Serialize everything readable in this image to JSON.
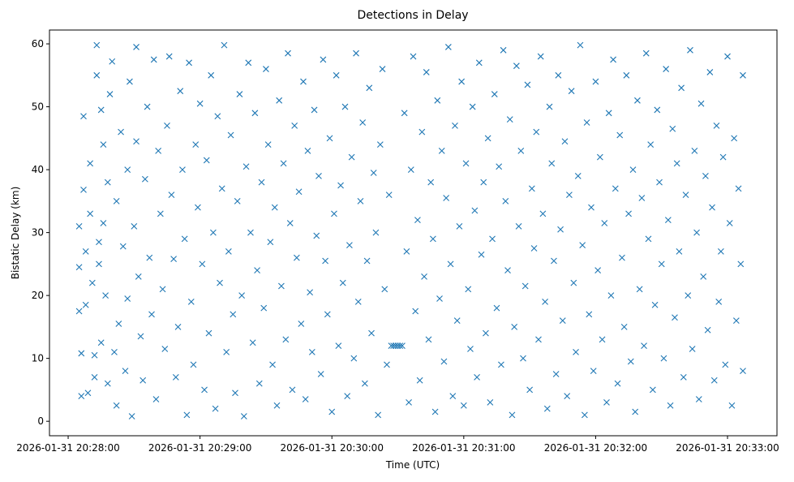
{
  "chart_data": {
    "type": "scatter",
    "title": "Detections in Delay",
    "xlabel": "Time (UTC)",
    "ylabel": "Bistatic Delay (km)",
    "x_unit": "seconds since 2026-01-31 20:28:00",
    "xlim": [
      -8.5,
      322.5
    ],
    "ylim": [
      -2.3,
      62.2
    ],
    "xticks": [
      0,
      60,
      120,
      180,
      240,
      300
    ],
    "xtick_labels": [
      "2026-01-31 20:28:00",
      "2026-01-31 20:29:00",
      "2026-01-31 20:30:00",
      "2026-01-31 20:31:00",
      "2026-01-31 20:32:00",
      "2026-01-31 20:33:00"
    ],
    "yticks": [
      0,
      10,
      20,
      30,
      40,
      50,
      60
    ],
    "ytick_labels": [
      "0",
      "10",
      "20",
      "30",
      "40",
      "50",
      "60"
    ],
    "marker": "x",
    "color": "#1f77b4",
    "grid": false,
    "points": [
      [
        5,
        31
      ],
      [
        5,
        24.5
      ],
      [
        5,
        17.5
      ],
      [
        6,
        10.8
      ],
      [
        6,
        4
      ],
      [
        7,
        48.5
      ],
      [
        7,
        36.8
      ],
      [
        8,
        27
      ],
      [
        8,
        18.5
      ],
      [
        9,
        4.5
      ],
      [
        10,
        41
      ],
      [
        10,
        33
      ],
      [
        11,
        22
      ],
      [
        12,
        10.5
      ],
      [
        12,
        7
      ],
      [
        13,
        59.8
      ],
      [
        13,
        55
      ],
      [
        14,
        25
      ],
      [
        14,
        28.5
      ],
      [
        15,
        49.5
      ],
      [
        15,
        12.5
      ],
      [
        16,
        44
      ],
      [
        16,
        31.5
      ],
      [
        17,
        20
      ],
      [
        18,
        6
      ],
      [
        18,
        38
      ],
      [
        19,
        52
      ],
      [
        20,
        57.2
      ],
      [
        21,
        11
      ],
      [
        22,
        35
      ],
      [
        22,
        2.5
      ],
      [
        23,
        15.5
      ],
      [
        24,
        46
      ],
      [
        25,
        27.8
      ],
      [
        26,
        8
      ],
      [
        27,
        40
      ],
      [
        27,
        19.5
      ],
      [
        28,
        54
      ],
      [
        29,
        0.8
      ],
      [
        30,
        31
      ],
      [
        31,
        59.5
      ],
      [
        31,
        44.5
      ],
      [
        32,
        23
      ],
      [
        33,
        13.5
      ],
      [
        34,
        6.5
      ],
      [
        35,
        38.5
      ],
      [
        36,
        50
      ],
      [
        37,
        26
      ],
      [
        38,
        17
      ],
      [
        39,
        57.5
      ],
      [
        40,
        3.5
      ],
      [
        41,
        43
      ],
      [
        42,
        33
      ],
      [
        43,
        21
      ],
      [
        44,
        11.5
      ],
      [
        45,
        47
      ],
      [
        46,
        58
      ],
      [
        47,
        36
      ],
      [
        48,
        25.8
      ],
      [
        49,
        7
      ],
      [
        50,
        15
      ],
      [
        51,
        52.5
      ],
      [
        52,
        40
      ],
      [
        53,
        29
      ],
      [
        54,
        1
      ],
      [
        55,
        57
      ],
      [
        56,
        19
      ],
      [
        57,
        9
      ],
      [
        58,
        44
      ],
      [
        59,
        34
      ],
      [
        60,
        50.5
      ],
      [
        61,
        25
      ],
      [
        62,
        5
      ],
      [
        63,
        41.5
      ],
      [
        64,
        14
      ],
      [
        65,
        55
      ],
      [
        66,
        30
      ],
      [
        67,
        2
      ],
      [
        68,
        48.5
      ],
      [
        69,
        22
      ],
      [
        70,
        37
      ],
      [
        71,
        59.8
      ],
      [
        72,
        11
      ],
      [
        73,
        27
      ],
      [
        74,
        45.5
      ],
      [
        75,
        17
      ],
      [
        76,
        4.5
      ],
      [
        77,
        35
      ],
      [
        78,
        52
      ],
      [
        79,
        20
      ],
      [
        80,
        0.8
      ],
      [
        81,
        40.5
      ],
      [
        82,
        57
      ],
      [
        83,
        30
      ],
      [
        84,
        12.5
      ],
      [
        85,
        49
      ],
      [
        86,
        24
      ],
      [
        87,
        6
      ],
      [
        88,
        38
      ],
      [
        89,
        18
      ],
      [
        90,
        56
      ],
      [
        91,
        44
      ],
      [
        92,
        28.5
      ],
      [
        93,
        9
      ],
      [
        94,
        34
      ],
      [
        95,
        2.5
      ],
      [
        96,
        51
      ],
      [
        97,
        21.5
      ],
      [
        98,
        41
      ],
      [
        99,
        13
      ],
      [
        100,
        58.5
      ],
      [
        101,
        31.5
      ],
      [
        102,
        5
      ],
      [
        103,
        47
      ],
      [
        104,
        26
      ],
      [
        105,
        36.5
      ],
      [
        106,
        15.5
      ],
      [
        107,
        54
      ],
      [
        108,
        3.5
      ],
      [
        109,
        43
      ],
      [
        110,
        20.5
      ],
      [
        111,
        11
      ],
      [
        112,
        49.5
      ],
      [
        113,
        29.5
      ],
      [
        114,
        39
      ],
      [
        115,
        7.5
      ],
      [
        116,
        57.5
      ],
      [
        117,
        25.5
      ],
      [
        118,
        17
      ],
      [
        119,
        45
      ],
      [
        120,
        1.5
      ],
      [
        121,
        33
      ],
      [
        122,
        55
      ],
      [
        123,
        12
      ],
      [
        124,
        37.5
      ],
      [
        125,
        22
      ],
      [
        126,
        50
      ],
      [
        127,
        4
      ],
      [
        128,
        28
      ],
      [
        129,
        42
      ],
      [
        130,
        10
      ],
      [
        131,
        58.5
      ],
      [
        132,
        19
      ],
      [
        133,
        35
      ],
      [
        134,
        47.5
      ],
      [
        135,
        6
      ],
      [
        136,
        25.5
      ],
      [
        137,
        53
      ],
      [
        138,
        14
      ],
      [
        139,
        39.5
      ],
      [
        140,
        30
      ],
      [
        141,
        1
      ],
      [
        142,
        44
      ],
      [
        143,
        56
      ],
      [
        144,
        21
      ],
      [
        145,
        9
      ],
      [
        146,
        36
      ],
      [
        147,
        12
      ],
      [
        148,
        12
      ],
      [
        149,
        12
      ],
      [
        150,
        12
      ],
      [
        151,
        12
      ],
      [
        152,
        12
      ],
      [
        153,
        49
      ],
      [
        154,
        27
      ],
      [
        155,
        3
      ],
      [
        156,
        40
      ],
      [
        157,
        58
      ],
      [
        158,
        17.5
      ],
      [
        159,
        32
      ],
      [
        160,
        6.5
      ],
      [
        161,
        46
      ],
      [
        162,
        23
      ],
      [
        163,
        55.5
      ],
      [
        164,
        13
      ],
      [
        165,
        38
      ],
      [
        166,
        29
      ],
      [
        167,
        1.5
      ],
      [
        168,
        51
      ],
      [
        169,
        19.5
      ],
      [
        170,
        43
      ],
      [
        171,
        9.5
      ],
      [
        172,
        35.5
      ],
      [
        173,
        59.5
      ],
      [
        174,
        25
      ],
      [
        175,
        4
      ],
      [
        176,
        47
      ],
      [
        177,
        16
      ],
      [
        178,
        31
      ],
      [
        179,
        54
      ],
      [
        180,
        2.5
      ],
      [
        181,
        41
      ],
      [
        182,
        21
      ],
      [
        183,
        11.5
      ],
      [
        184,
        50
      ],
      [
        185,
        33.5
      ],
      [
        186,
        7
      ],
      [
        187,
        57
      ],
      [
        188,
        26.5
      ],
      [
        189,
        38
      ],
      [
        190,
        14
      ],
      [
        191,
        45
      ],
      [
        192,
        3
      ],
      [
        193,
        29
      ],
      [
        194,
        52
      ],
      [
        195,
        18
      ],
      [
        196,
        40.5
      ],
      [
        197,
        9
      ],
      [
        198,
        59
      ],
      [
        199,
        35
      ],
      [
        200,
        24
      ],
      [
        201,
        48
      ],
      [
        202,
        1
      ],
      [
        203,
        15
      ],
      [
        204,
        56.5
      ],
      [
        205,
        31
      ],
      [
        206,
        43
      ],
      [
        207,
        10
      ],
      [
        208,
        21.5
      ],
      [
        209,
        53.5
      ],
      [
        210,
        5
      ],
      [
        211,
        37
      ],
      [
        212,
        27.5
      ],
      [
        213,
        46
      ],
      [
        214,
        13
      ],
      [
        215,
        58
      ],
      [
        216,
        33
      ],
      [
        217,
        19
      ],
      [
        218,
        2
      ],
      [
        219,
        50
      ],
      [
        220,
        41
      ],
      [
        221,
        25.5
      ],
      [
        222,
        7.5
      ],
      [
        223,
        55
      ],
      [
        224,
        30.5
      ],
      [
        225,
        16
      ],
      [
        226,
        44.5
      ],
      [
        227,
        4
      ],
      [
        228,
        36
      ],
      [
        229,
        52.5
      ],
      [
        230,
        22
      ],
      [
        231,
        11
      ],
      [
        232,
        39
      ],
      [
        233,
        59.8
      ],
      [
        234,
        28
      ],
      [
        235,
        1
      ],
      [
        236,
        47.5
      ],
      [
        237,
        17
      ],
      [
        238,
        34
      ],
      [
        239,
        8
      ],
      [
        240,
        54
      ],
      [
        241,
        24
      ],
      [
        242,
        42
      ],
      [
        243,
        13
      ],
      [
        244,
        31.5
      ],
      [
        245,
        3
      ],
      [
        246,
        49
      ],
      [
        247,
        20
      ],
      [
        248,
        57.5
      ],
      [
        249,
        37
      ],
      [
        250,
        6
      ],
      [
        251,
        45.5
      ],
      [
        252,
        26
      ],
      [
        253,
        15
      ],
      [
        254,
        55
      ],
      [
        255,
        33
      ],
      [
        256,
        9.5
      ],
      [
        257,
        40
      ],
      [
        258,
        1.5
      ],
      [
        259,
        51
      ],
      [
        260,
        21
      ],
      [
        261,
        35.5
      ],
      [
        262,
        12
      ],
      [
        263,
        58.5
      ],
      [
        264,
        29
      ],
      [
        265,
        44
      ],
      [
        266,
        5
      ],
      [
        267,
        18.5
      ],
      [
        268,
        49.5
      ],
      [
        269,
        38
      ],
      [
        270,
        25
      ],
      [
        271,
        10
      ],
      [
        272,
        56
      ],
      [
        273,
        32
      ],
      [
        274,
        2.5
      ],
      [
        275,
        46.5
      ],
      [
        276,
        16.5
      ],
      [
        277,
        41
      ],
      [
        278,
        27
      ],
      [
        279,
        53
      ],
      [
        280,
        7
      ],
      [
        281,
        36
      ],
      [
        282,
        20
      ],
      [
        283,
        59
      ],
      [
        284,
        11.5
      ],
      [
        285,
        43
      ],
      [
        286,
        30
      ],
      [
        287,
        3.5
      ],
      [
        288,
        50.5
      ],
      [
        289,
        23
      ],
      [
        290,
        39
      ],
      [
        291,
        14.5
      ],
      [
        292,
        55.5
      ],
      [
        293,
        34
      ],
      [
        294,
        6.5
      ],
      [
        295,
        47
      ],
      [
        296,
        19
      ],
      [
        297,
        27
      ],
      [
        298,
        42
      ],
      [
        299,
        9
      ],
      [
        300,
        58
      ],
      [
        301,
        31.5
      ],
      [
        302,
        2.5
      ],
      [
        303,
        45
      ],
      [
        304,
        16
      ],
      [
        305,
        37
      ],
      [
        306,
        25
      ],
      [
        307,
        8
      ],
      [
        307,
        55
      ]
    ]
  }
}
